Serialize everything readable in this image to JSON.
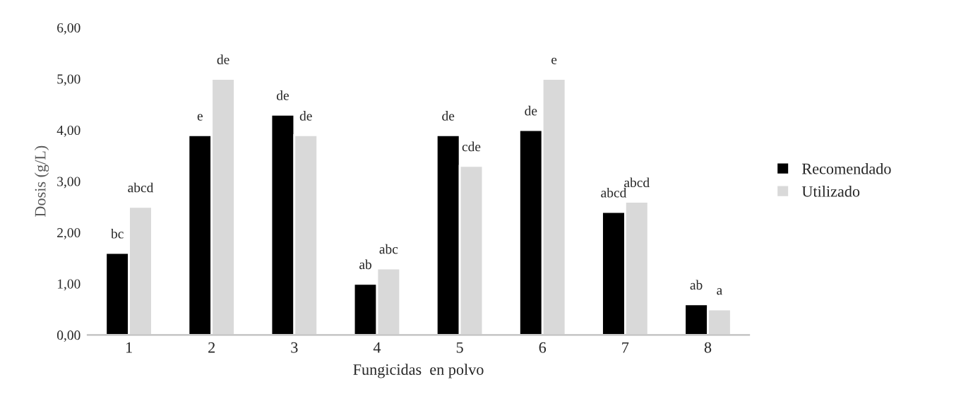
{
  "chart_data": {
    "type": "bar",
    "xlabel": "Fungicidas  en polvo",
    "ylabel": "Dosis (g/L)",
    "categories": [
      "1",
      "2",
      "3",
      "4",
      "5",
      "6",
      "7",
      "8"
    ],
    "series": [
      {
        "name": "Recomendado",
        "color": "#000000",
        "values": [
          1.6,
          3.9,
          4.3,
          1.0,
          3.9,
          4.0,
          2.4,
          0.6
        ],
        "value_labels": [
          "bc",
          "e",
          "de",
          "ab",
          "de",
          "de",
          "abcd",
          "ab"
        ]
      },
      {
        "name": "Utilizado",
        "color": "#d9d9d9",
        "values": [
          2.5,
          5.0,
          3.9,
          1.3,
          3.3,
          5.0,
          2.6,
          0.5
        ],
        "value_labels": [
          "abcd",
          "de",
          "de",
          "abc",
          "cde",
          "e",
          "abcd",
          "a"
        ]
      }
    ],
    "ylim": [
      0,
      6
    ],
    "yticks": [
      {
        "value": 0,
        "label": "0,00"
      },
      {
        "value": 1,
        "label": "1,00"
      },
      {
        "value": 2,
        "label": "2,00"
      },
      {
        "value": 3,
        "label": "3,00"
      },
      {
        "value": 4,
        "label": "4,00"
      },
      {
        "value": 5,
        "label": "5,00"
      },
      {
        "value": 6,
        "label": "6,00"
      }
    ],
    "grid": false,
    "legend": "right"
  }
}
